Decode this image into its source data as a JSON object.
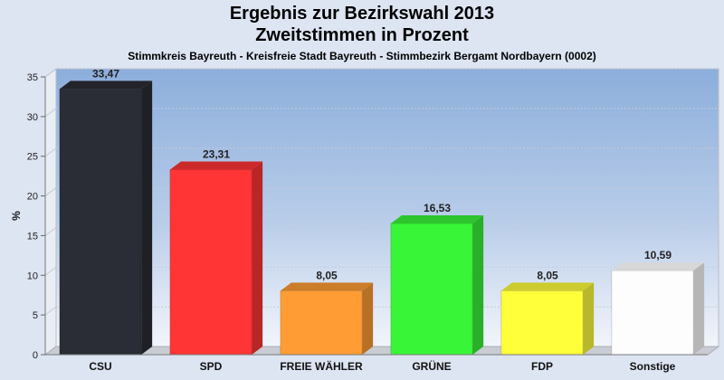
{
  "header": {
    "title_line1": "Ergebnis zur Bezirkswahl 2013",
    "title_line2": "Zweitstimmen in Prozent",
    "subtitle": "Stimmkreis Bayreuth - Kreisfreie Stadt Bayreuth - Stimmbezirk Bergamt Nordbayern (0002)"
  },
  "chart_data": {
    "type": "bar",
    "title": "Ergebnis zur Bezirkswahl 2013 Zweitstimmen in Prozent",
    "subtitle": "Stimmkreis Bayreuth - Kreisfreie Stadt Bayreuth - Stimmbezirk Bergamt Nordbayern (0002)",
    "xlabel": "",
    "ylabel": "%",
    "ylim": [
      0,
      35
    ],
    "yticks": [
      0,
      5,
      10,
      15,
      20,
      25,
      30,
      35
    ],
    "grid": true,
    "categories": [
      "CSU",
      "SPD",
      "FREIE WÄHLER",
      "GRÜNE",
      "FDP",
      "Sonstige"
    ],
    "values": [
      33.47,
      23.31,
      8.05,
      16.53,
      8.05,
      10.59
    ],
    "value_labels": [
      "33,47",
      "23,31",
      "8,05",
      "16,53",
      "8,05",
      "10,59"
    ],
    "colors": [
      "#2a2d35",
      "#ff3535",
      "#ff9c33",
      "#38f538",
      "#ffff3a",
      "#fdfdfd"
    ]
  }
}
